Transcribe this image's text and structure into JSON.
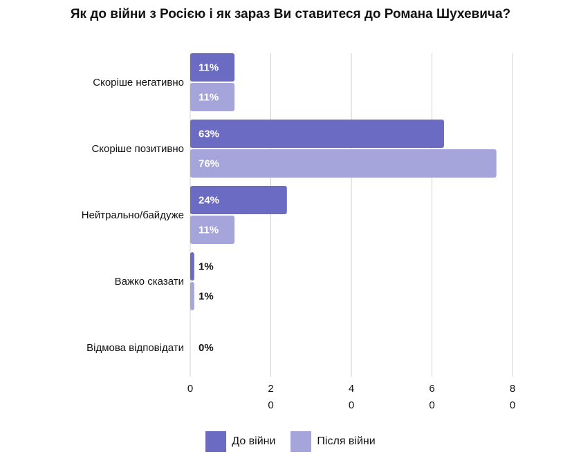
{
  "chart_data": {
    "type": "bar",
    "orientation": "horizontal",
    "title": "Як до війни з Росією і як зараз Ви ставитеся до Романа Шухевича?",
    "categories": [
      "Скоріше негативно",
      "Скоріше позитивно",
      "Нейтрально/байдуже",
      "Важко сказати",
      "Відмова відповідати"
    ],
    "series": [
      {
        "name": "До війни",
        "color": "#6b6bc4",
        "values": [
          11,
          63,
          24,
          1,
          0
        ],
        "labels": [
          "11%",
          "63%",
          "24%",
          "1%",
          "0%"
        ]
      },
      {
        "name": "Після війни",
        "color": "#a5a5dc",
        "values": [
          11,
          76,
          11,
          1,
          null
        ],
        "labels": [
          "11%",
          "76%",
          "11%",
          "1%",
          ""
        ]
      }
    ],
    "xlim": [
      0,
      80
    ],
    "xticks": [
      {
        "value": 0,
        "label": [
          "0"
        ]
      },
      {
        "value": 20,
        "label": [
          "2",
          "0"
        ]
      },
      {
        "value": 40,
        "label": [
          "4",
          "0"
        ]
      },
      {
        "value": 60,
        "label": [
          "6",
          "0"
        ]
      },
      {
        "value": 80,
        "label": [
          "8",
          "0"
        ]
      }
    ],
    "grid": true,
    "legend_position": "bottom"
  }
}
